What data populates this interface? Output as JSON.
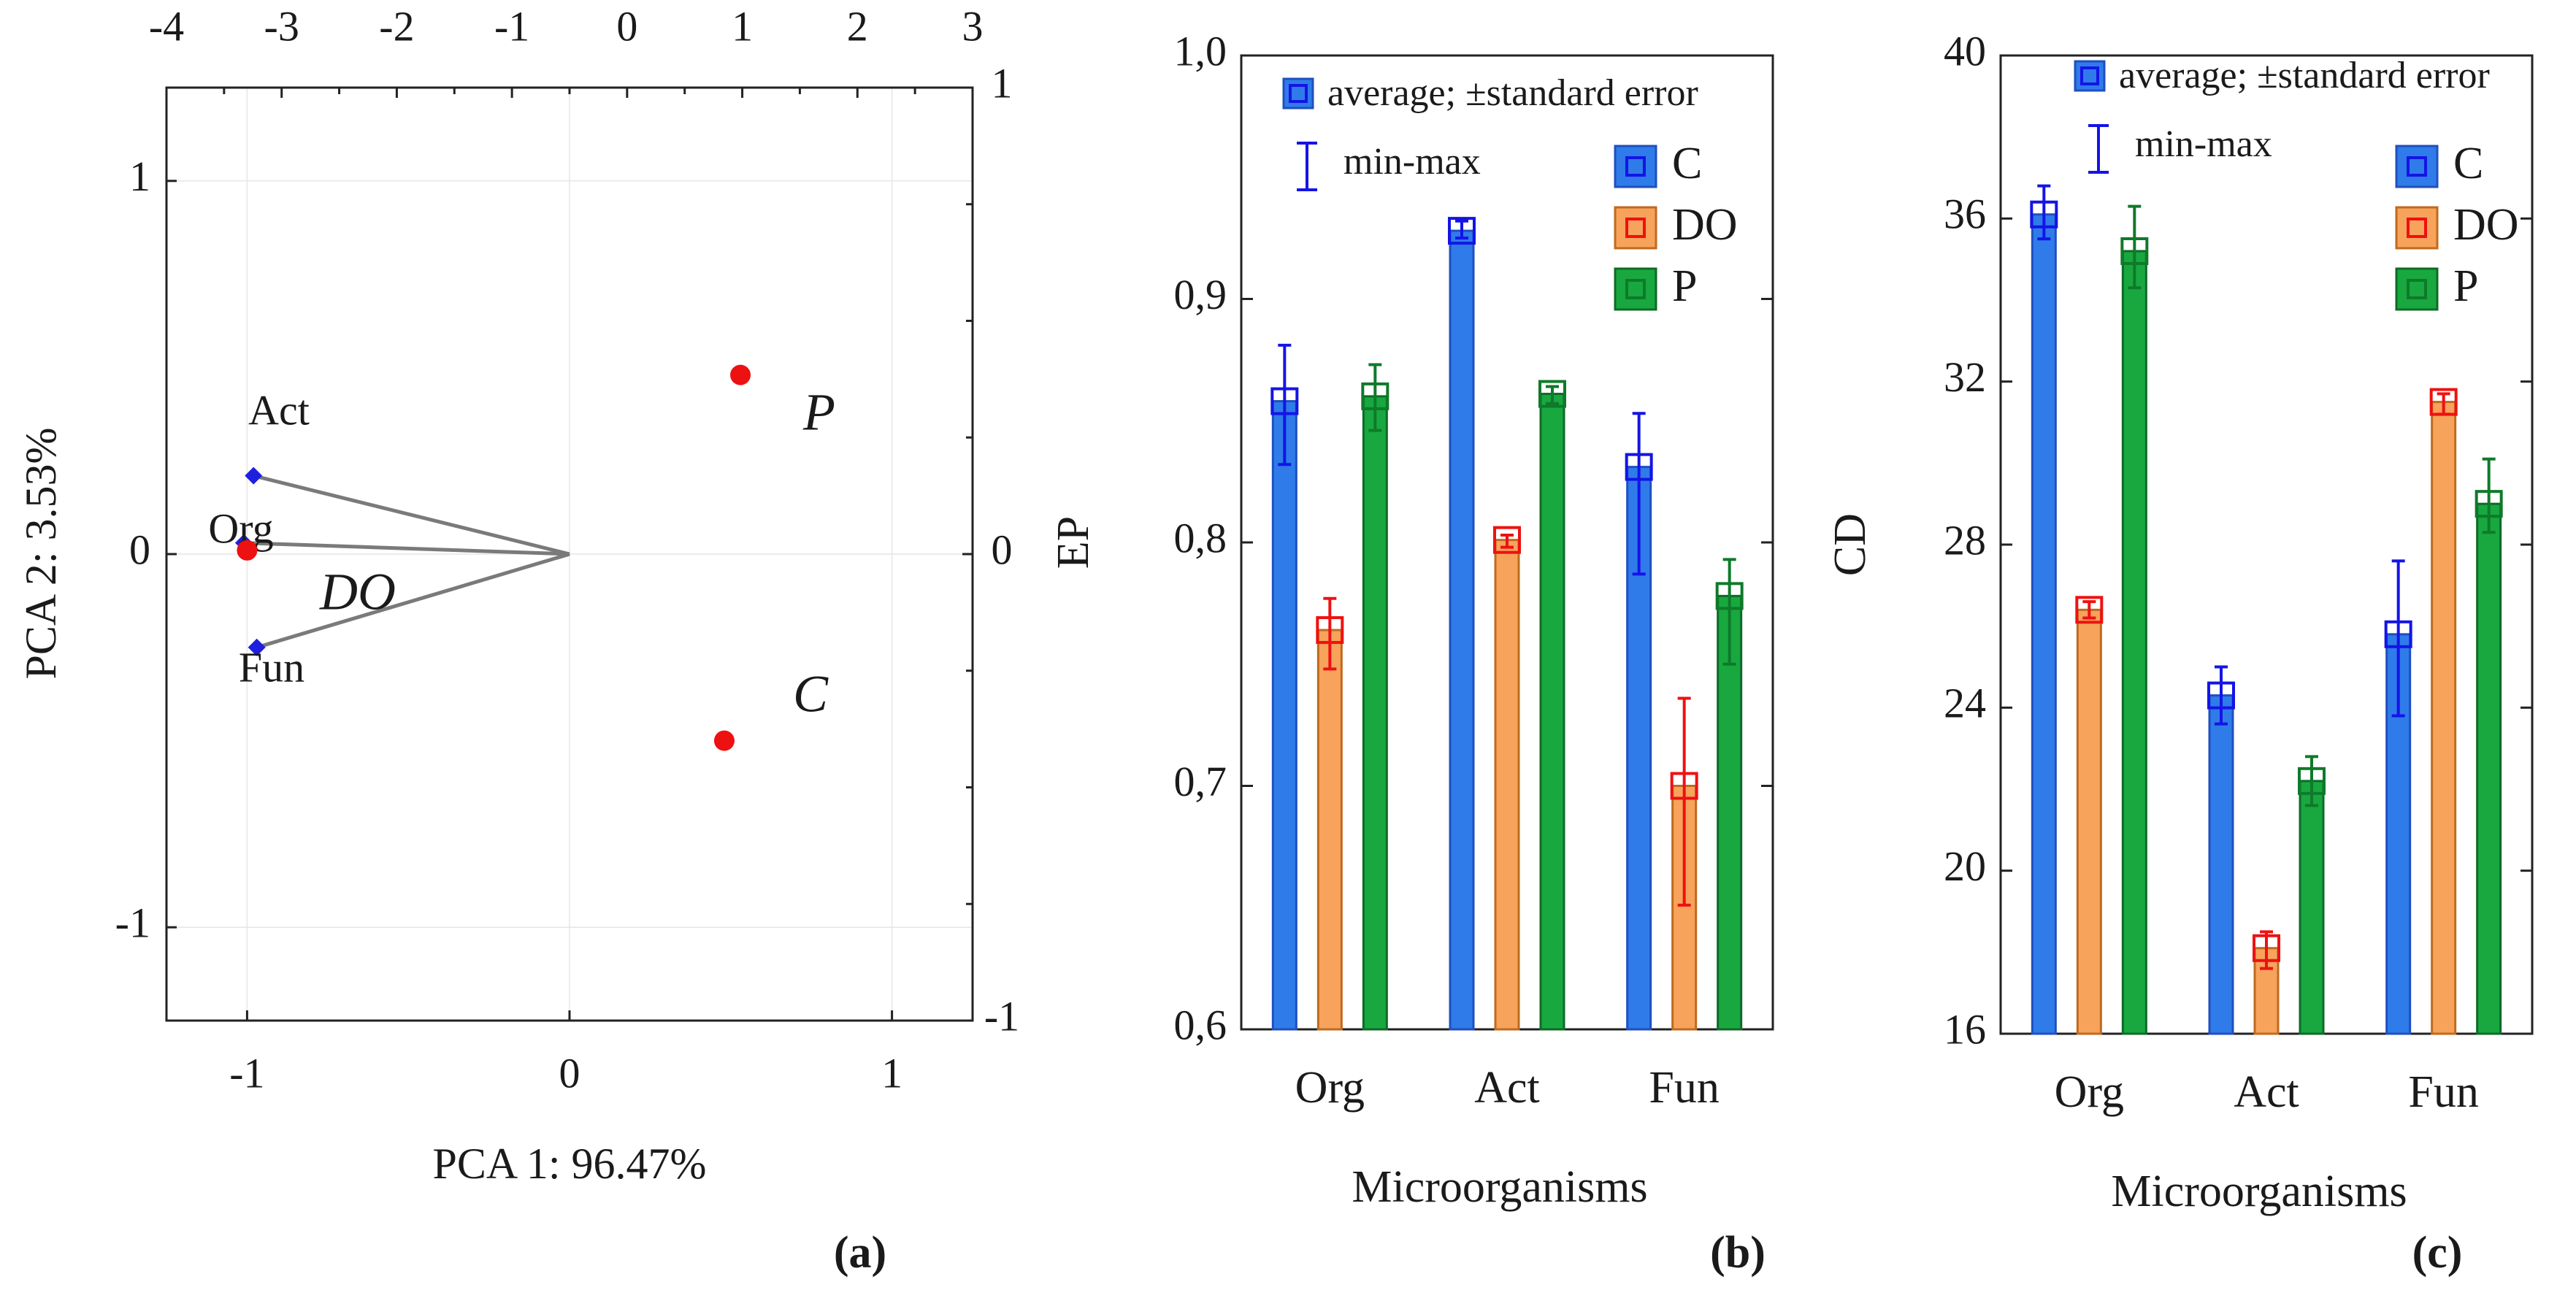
{
  "figure": {
    "panel_labels": [
      "(a)",
      "(b)",
      "(c)"
    ]
  },
  "chart_data": [
    {
      "panel": "(a)",
      "type": "scatter",
      "subtype": "pca-biplot",
      "xlabel": "PCA 1: 96.47%",
      "ylabel": "PCA 2:  3.53%",
      "xlim": [
        -1.25,
        1.25
      ],
      "ylim": [
        -1.25,
        1.25
      ],
      "xticks": [
        "-1",
        "0",
        "1"
      ],
      "yticks": [
        "1",
        "0",
        "-1"
      ],
      "top_xlim": [
        -4,
        3
      ],
      "top_xticks": [
        "-4",
        "-3",
        "-2",
        "-1",
        "0",
        "1",
        "2",
        "3"
      ],
      "right_ylim": [
        -1,
        1
      ],
      "right_yticks": [
        "1",
        "0",
        "-1"
      ],
      "grid": true,
      "points": [
        {
          "label": "P",
          "x": 0.53,
          "y": 0.48,
          "color": "#ee1111"
        },
        {
          "label": "C",
          "x": 0.48,
          "y": -0.5,
          "color": "#ee1111"
        },
        {
          "label": "DO",
          "x": -1.0,
          "y": 0.01,
          "color": "#ee1111"
        }
      ],
      "vectors": [
        {
          "label": "Act",
          "x": -0.98,
          "y": 0.21,
          "color": "#1f1fe0"
        },
        {
          "label": "Org",
          "x": -1.01,
          "y": 0.03,
          "color": "#1f1fe0"
        },
        {
          "label": "Fun",
          "x": -0.97,
          "y": -0.25,
          "color": "#1f1fe0"
        }
      ]
    },
    {
      "panel": "(b)",
      "type": "bar",
      "xlabel": "Microorganisms",
      "ylabel": "EP",
      "ylim": [
        0.6,
        1.0
      ],
      "yticks": [
        "0,6",
        "0,7",
        "0,8",
        "0,9",
        "1,0"
      ],
      "categories": [
        "Org",
        "Act",
        "Fun"
      ],
      "series": [
        {
          "name": "C",
          "fill": "#2f7bea",
          "stroke": "#1f4fc0",
          "marker": "#1414e6",
          "values": [
            0.858,
            0.928,
            0.831
          ],
          "min": [
            0.832,
            0.925,
            0.787
          ],
          "max": [
            0.881,
            0.932,
            0.853
          ]
        },
        {
          "name": "DO",
          "fill": "#f7a35c",
          "stroke": "#c06a1e",
          "marker": "#ee1111",
          "values": [
            0.764,
            0.801,
            0.7
          ],
          "min": [
            0.748,
            0.798,
            0.651
          ],
          "max": [
            0.777,
            0.803,
            0.736
          ]
        },
        {
          "name": "P",
          "fill": "#18a83f",
          "stroke": "#0d6b27",
          "marker": "#0e7a2a",
          "values": [
            0.86,
            0.861,
            0.778
          ],
          "min": [
            0.846,
            0.857,
            0.75
          ],
          "max": [
            0.873,
            0.864,
            0.793
          ]
        }
      ],
      "legend": {
        "stat_label": "average; ±standard error",
        "range_label": "min-max"
      }
    },
    {
      "panel": "(c)",
      "type": "bar",
      "xlabel": "Microorganisms",
      "ylabel": "CD",
      "ylim": [
        16,
        40
      ],
      "yticks": [
        "16",
        "20",
        "24",
        "28",
        "32",
        "36",
        "40"
      ],
      "categories": [
        "Org",
        "Act",
        "Fun"
      ],
      "series": [
        {
          "name": "C",
          "fill": "#2f7bea",
          "stroke": "#1f4fc0",
          "marker": "#1414e6",
          "values": [
            36.1,
            24.3,
            25.8
          ],
          "min": [
            35.5,
            23.6,
            23.8
          ],
          "max": [
            36.8,
            25.0,
            27.6
          ]
        },
        {
          "name": "DO",
          "fill": "#f7a35c",
          "stroke": "#c06a1e",
          "marker": "#ee1111",
          "values": [
            26.4,
            18.1,
            31.5
          ],
          "min": [
            26.2,
            17.6,
            31.2
          ],
          "max": [
            26.6,
            18.5,
            31.7
          ]
        },
        {
          "name": "P",
          "fill": "#18a83f",
          "stroke": "#0d6b27",
          "marker": "#0e7a2a",
          "values": [
            35.2,
            22.2,
            29.0
          ],
          "min": [
            34.3,
            21.6,
            28.3
          ],
          "max": [
            36.3,
            22.8,
            30.1
          ]
        }
      ],
      "legend": {
        "stat_label": "average; ±standard error",
        "range_label": "min-max"
      }
    }
  ]
}
